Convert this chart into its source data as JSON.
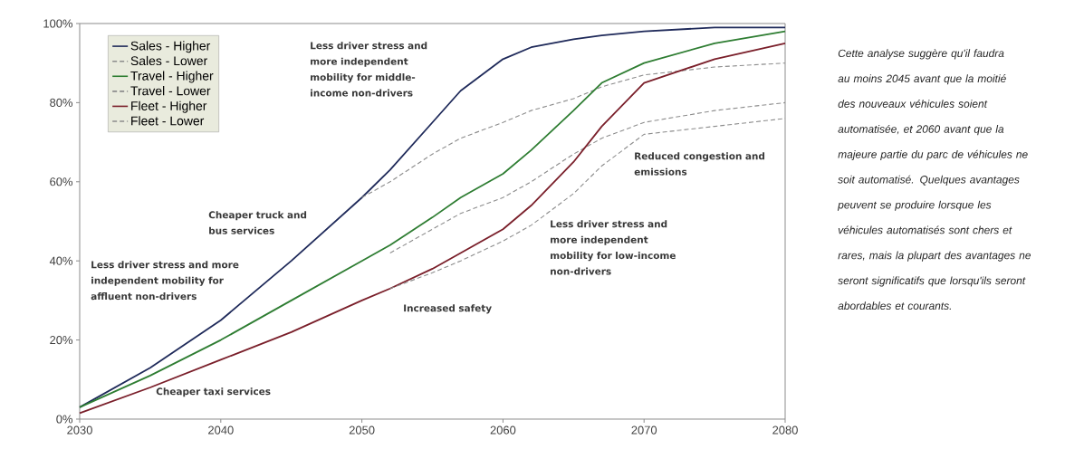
{
  "chart_data": {
    "type": "line",
    "x": [
      2030,
      2035,
      2040,
      2045,
      2050,
      2052,
      2055,
      2057,
      2060,
      2062,
      2065,
      2067,
      2070,
      2075,
      2080
    ],
    "xlim": [
      2030,
      2080
    ],
    "xticks": [
      2030,
      2040,
      2050,
      2060,
      2070,
      2080
    ],
    "ylim": [
      0,
      100
    ],
    "yticks": [
      {
        "value": 0,
        "label": "0%"
      },
      {
        "value": 20,
        "label": "20%"
      },
      {
        "value": 40,
        "label": "40%"
      },
      {
        "value": 60,
        "label": "60%"
      },
      {
        "value": 80,
        "label": "80%"
      },
      {
        "value": 100,
        "label": "100%"
      }
    ],
    "grid": false,
    "legend": "top left",
    "marker": "none",
    "series": [
      {
        "name": "Sales - Higher",
        "color": "#1f2a5a",
        "line_style": "solid",
        "values": [
          3,
          13,
          25,
          40,
          56,
          63,
          75,
          83,
          91,
          94,
          96,
          97,
          98,
          99,
          99
        ]
      },
      {
        "name": "Sales - Lower",
        "color": "#8c8c8c",
        "line_style": "dashed",
        "values": [
          null,
          null,
          null,
          null,
          56,
          60,
          67,
          71,
          75,
          78,
          81,
          84,
          87,
          89,
          90
        ]
      },
      {
        "name": "Travel - Higher",
        "color": "#2e7d32",
        "line_style": "solid",
        "values": [
          3,
          11,
          20,
          30,
          40,
          44,
          51,
          56,
          62,
          68,
          78,
          85,
          90,
          95,
          98
        ]
      },
      {
        "name": "Travel -  Lower",
        "color": "#8c8c8c",
        "line_style": "dashed",
        "values": [
          null,
          null,
          null,
          null,
          null,
          42,
          48,
          52,
          56,
          60,
          67,
          71,
          75,
          78,
          80
        ]
      },
      {
        "name": "Fleet - Higher",
        "color": "#7a1f2a",
        "line_style": "solid",
        "values": [
          1.5,
          8,
          15,
          22,
          30,
          33,
          38,
          42,
          48,
          54,
          65,
          74,
          85,
          91,
          95
        ]
      },
      {
        "name": "Fleet -  Lower",
        "color": "#8c8c8c",
        "line_style": "dashed",
        "values": [
          null,
          null,
          null,
          null,
          null,
          33,
          37,
          40,
          45,
          49,
          57,
          64,
          72,
          74,
          76
        ]
      }
    ],
    "annotations": [
      "Less driver stress and more independent mobility for affluent non-drivers",
      "Cheaper truck and bus services",
      "Cheaper taxi services",
      "Less driver stress and more independent mobility for middle-income non-drivers",
      "Increased safety",
      "Less driver stress and more independent mobility for low-income non-drivers",
      "Reduced congestion and emissions",
      "Cette analyse suggère qu'il faudra au moins 2045 avant que la moitié des nouveaux véhicules soient automatisée, et 2060 avant que la majeure partie du parc de véhicules ne soit automatisé. Quelques avantages peuvent se produire lorsque les véhicules automatisés sont chers et rares, mais la plupart des avantages ne seront significatifs que lorsqu'ils seront abordables et courants."
    ]
  }
}
